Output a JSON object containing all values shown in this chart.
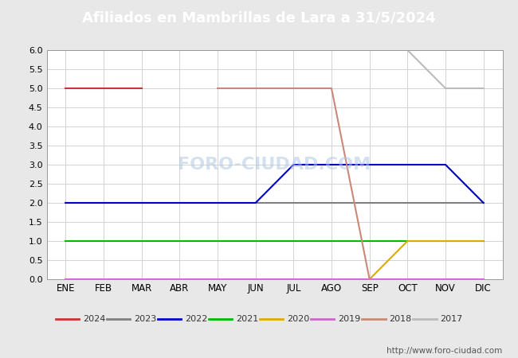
{
  "title": "Afiliados en Mambrillas de Lara a 31/5/2024",
  "title_bg_color": "#4f86c6",
  "title_text_color": "white",
  "ylim": [
    0.0,
    6.0
  ],
  "yticks": [
    0.0,
    0.5,
    1.0,
    1.5,
    2.0,
    2.5,
    3.0,
    3.5,
    4.0,
    4.5,
    5.0,
    5.5,
    6.0
  ],
  "months": [
    "ENE",
    "FEB",
    "MAR",
    "ABR",
    "MAY",
    "JUN",
    "JUL",
    "AGO",
    "SEP",
    "OCT",
    "NOV",
    "DIC"
  ],
  "watermark_chart": "FORO-CIUDAD.COM",
  "watermark_url": "http://www.foro-ciudad.com",
  "series": {
    "2024": {
      "color": "#cc3333",
      "data": [
        5,
        5,
        5,
        null,
        null,
        null,
        null,
        null,
        null,
        null,
        null,
        null
      ]
    },
    "2023": {
      "color": "#7f7f7f",
      "data": [
        2,
        2,
        2,
        2,
        2,
        2,
        2,
        2,
        2,
        2,
        2,
        2
      ]
    },
    "2022": {
      "color": "#0000cc",
      "data": [
        2,
        2,
        2,
        2,
        2,
        2,
        3,
        3,
        3,
        3,
        3,
        2
      ]
    },
    "2021": {
      "color": "#00bb00",
      "data": [
        1,
        1,
        1,
        1,
        1,
        1,
        1,
        1,
        1,
        1,
        1,
        1
      ]
    },
    "2020": {
      "color": "#ddaa00",
      "data": [
        null,
        null,
        null,
        null,
        null,
        null,
        null,
        null,
        0,
        1,
        1,
        1
      ]
    },
    "2019": {
      "color": "#cc66cc",
      "data": [
        0,
        0,
        0,
        0,
        0,
        0,
        0,
        0,
        0,
        0,
        0,
        0
      ]
    },
    "2018": {
      "color": "#cc8877",
      "data": [
        null,
        null,
        null,
        null,
        5,
        5,
        5,
        5,
        0,
        null,
        null,
        null
      ]
    },
    "2017": {
      "color": "#bbbbbb",
      "data": [
        null,
        null,
        null,
        null,
        null,
        null,
        null,
        null,
        null,
        6,
        5,
        5
      ]
    }
  },
  "legend_order": [
    "2024",
    "2023",
    "2022",
    "2021",
    "2020",
    "2019",
    "2018",
    "2017"
  ],
  "bg_color": "#e8e8e8",
  "plot_bg_color": "#ffffff",
  "grid_color": "#cccccc",
  "spine_color": "#999999"
}
